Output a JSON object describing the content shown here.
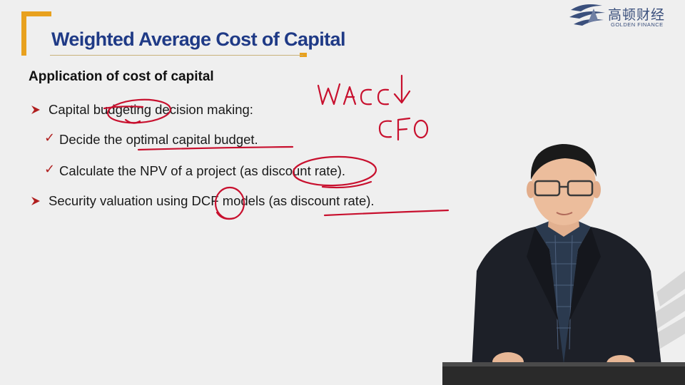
{
  "slide": {
    "title": "Weighted Average Cost of Capital",
    "subheading": "Application of cost of capital",
    "lines": [
      "Capital budgeting decision making:",
      "Decide the optimal capital budget.",
      "Calculate the NPV of a project (as discount rate).",
      "Security valuation using DCF models (as discount rate)."
    ]
  },
  "logo": {
    "chinese": "高顿财经",
    "english": "GOLDEN FINANCE"
  },
  "handwriting": {
    "note1": "WACC↓",
    "note2": "CFO"
  },
  "colors": {
    "title": "#1f3a86",
    "accent_orange": "#e8a11e",
    "bullet_red": "#b01e1e",
    "ink_red": "#c8102e",
    "background": "#efefef"
  },
  "icons": [
    "arrow-bullet-icon",
    "check-icon",
    "golden-finance-logo-icon"
  ]
}
